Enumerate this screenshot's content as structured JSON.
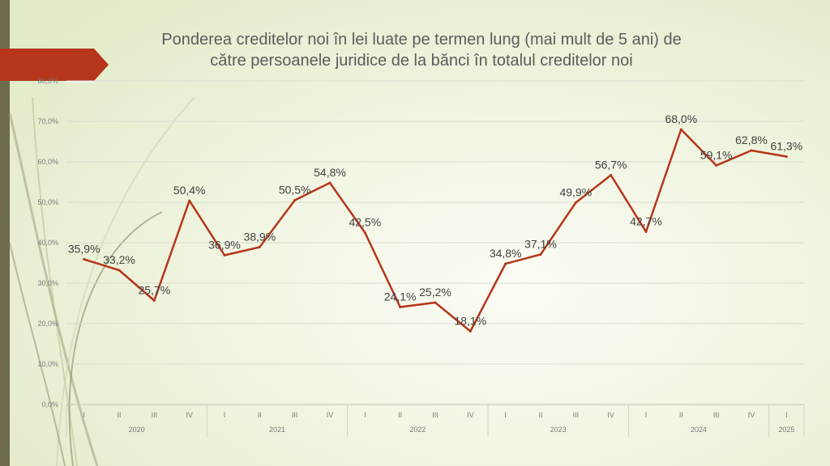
{
  "colors": {
    "series": "#b5361c",
    "banner": "#b5361c",
    "left_bar": "#6e6a4c",
    "axis_text": "#7a7a7a",
    "label_text": "#404040"
  },
  "chart_data": {
    "type": "line",
    "title_lines": [
      "Ponderea creditelor noi în lei luate pe termen lung (mai mult de 5 ani) de",
      "către persoanele juridice de la bănci în totalul creditelor noi"
    ],
    "xlabel": "",
    "ylabel": "",
    "ylim": [
      0,
      80
    ],
    "y_ticks": [
      "0,0%",
      "10,0%",
      "20,0%",
      "30,0%",
      "40,0%",
      "50,0%",
      "60,0%",
      "70,0%",
      "80,0%"
    ],
    "grid": true,
    "legend": "none",
    "quarters": [
      "I",
      "II",
      "III",
      "IV",
      "I",
      "II",
      "III",
      "IV",
      "I",
      "II",
      "III",
      "IV",
      "I",
      "II",
      "III",
      "IV",
      "I",
      "II",
      "III",
      "IV",
      "I"
    ],
    "years": [
      {
        "label": "2020",
        "count": 4
      },
      {
        "label": "2021",
        "count": 4
      },
      {
        "label": "2022",
        "count": 4
      },
      {
        "label": "2023",
        "count": 4
      },
      {
        "label": "2024",
        "count": 4
      },
      {
        "label": "2025",
        "count": 1
      }
    ],
    "values": [
      35.9,
      33.2,
      25.7,
      50.4,
      36.9,
      38.9,
      50.5,
      54.8,
      42.5,
      24.1,
      25.2,
      18.1,
      34.8,
      37.1,
      49.9,
      56.7,
      42.7,
      68.0,
      59.1,
      62.8,
      61.3
    ],
    "data_labels": [
      "35,9%",
      "33,2%",
      "25,7%",
      "50,4%",
      "36,9%",
      "38,9%",
      "50,5%",
      "54,8%",
      "42,5%",
      "24,1%",
      "25,2%",
      "18,1%",
      "34,8%",
      "37,1%",
      "49,9%",
      "56,7%",
      "42,7%",
      "68,0%",
      "59,1%",
      "62,8%",
      "61,3%"
    ]
  }
}
